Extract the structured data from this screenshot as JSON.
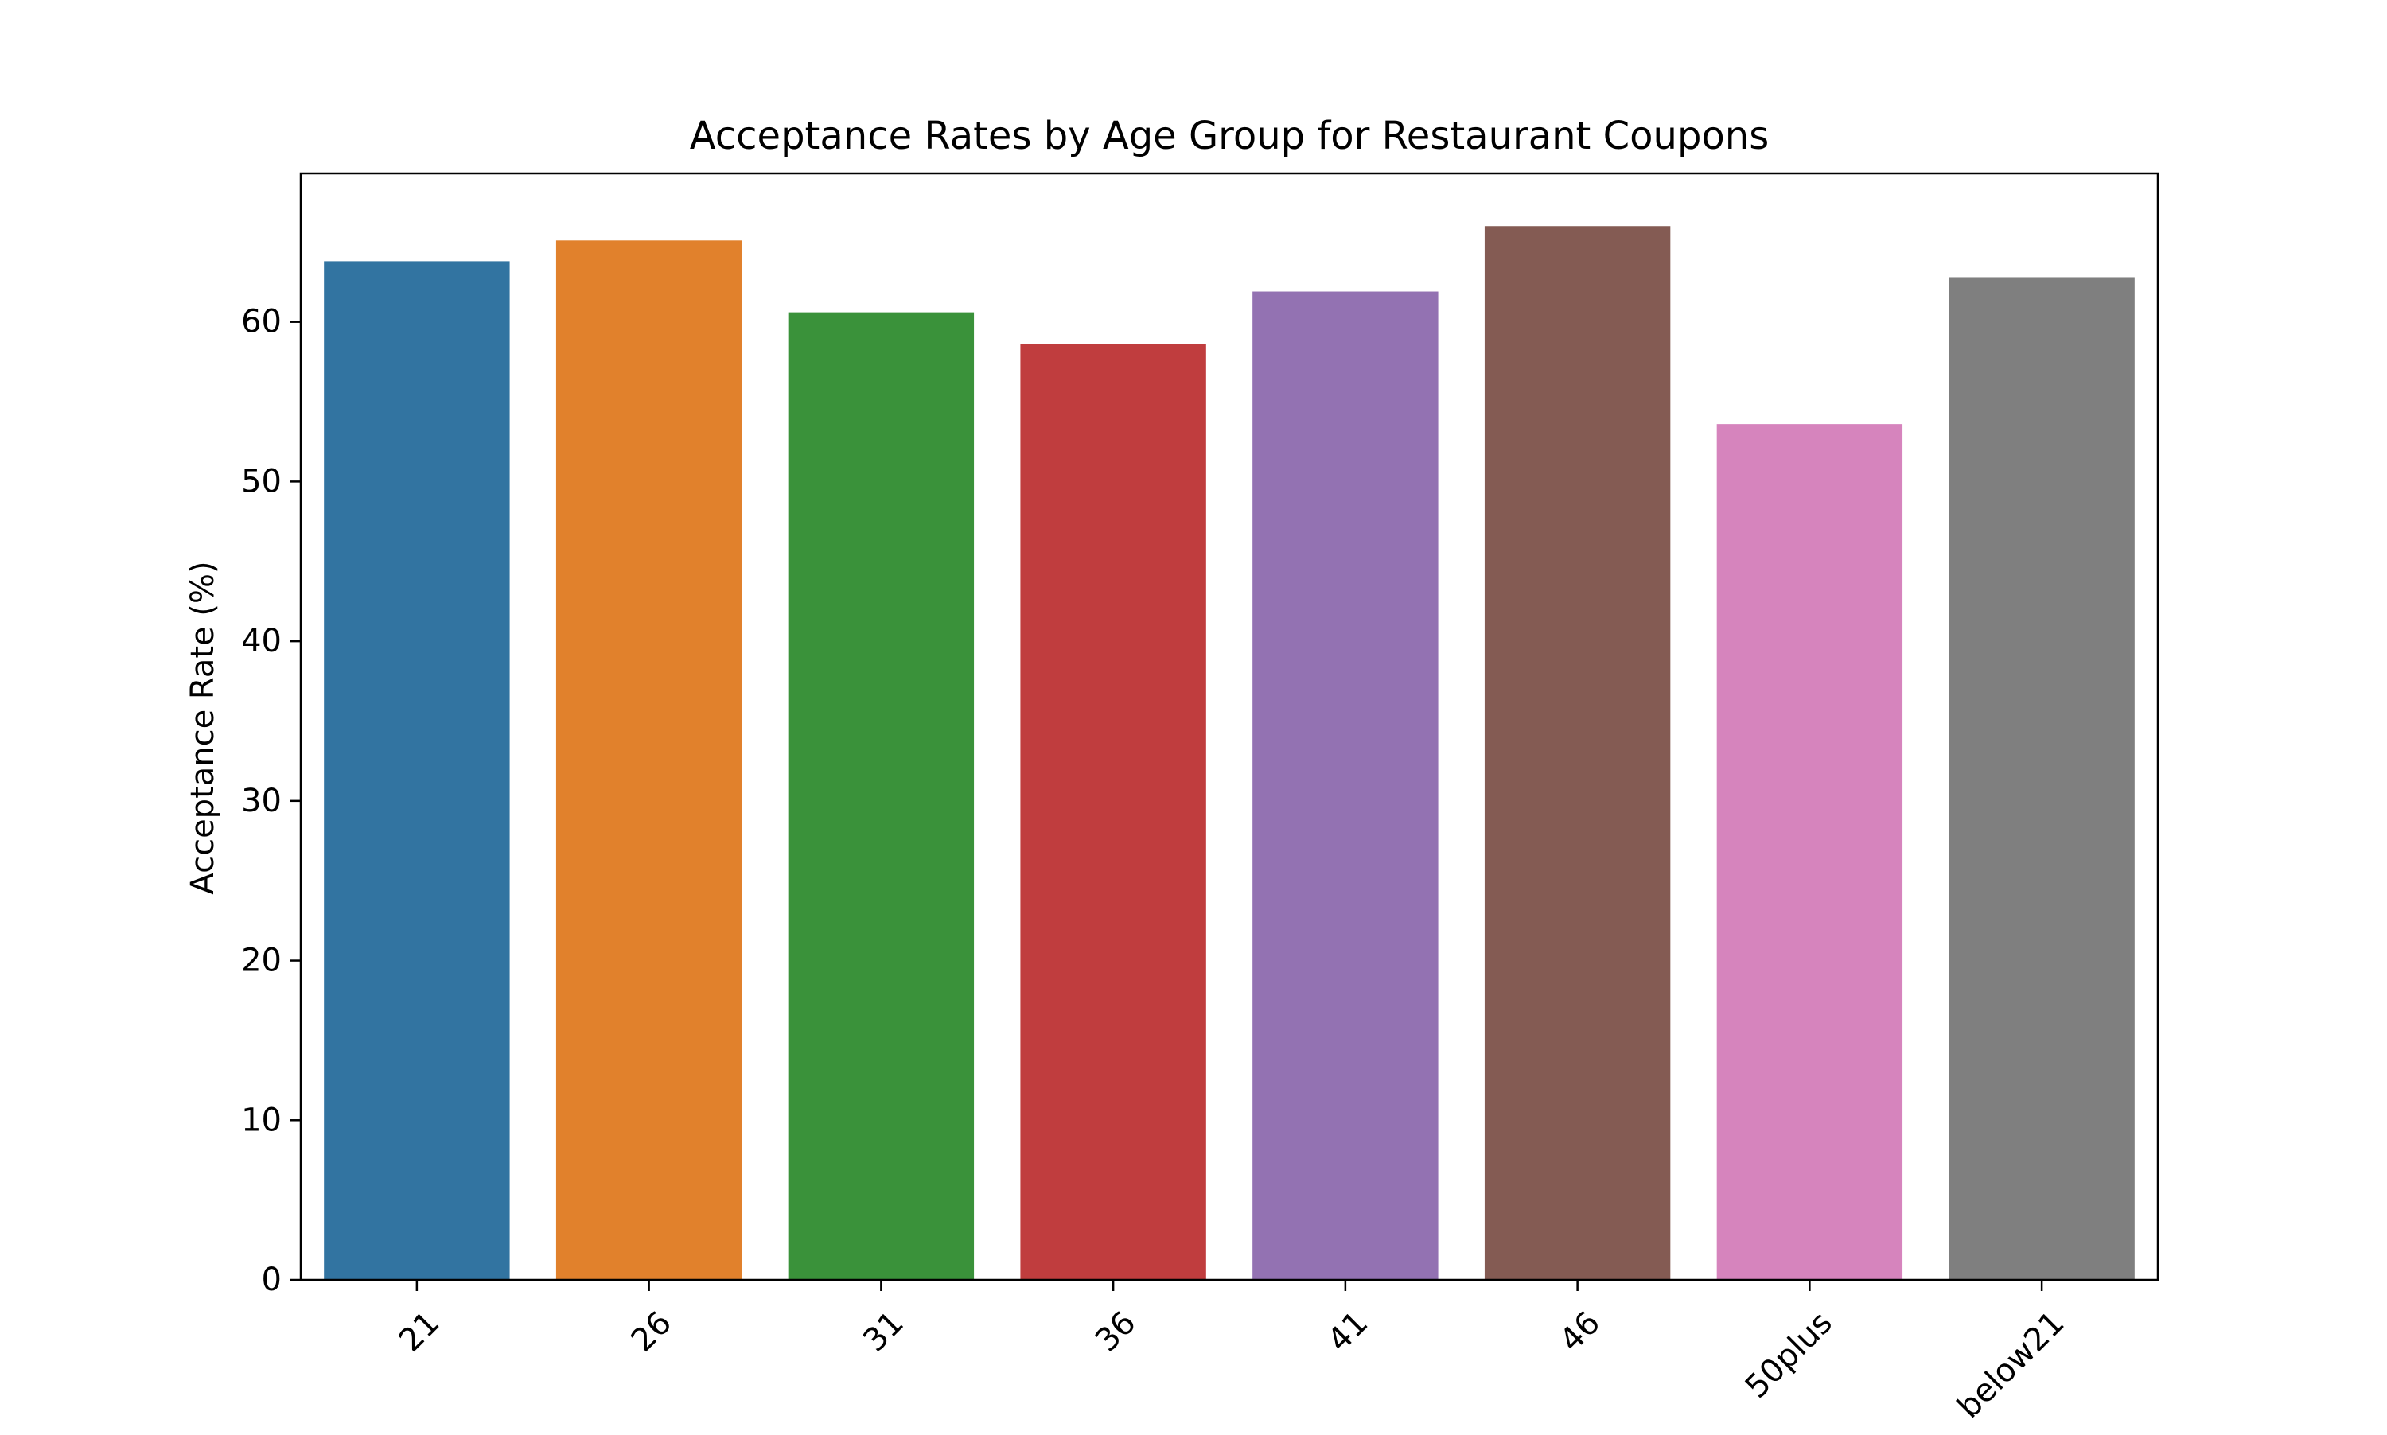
{
  "chart_data": {
    "type": "bar",
    "title": "Acceptance Rates by Age Group for Restaurant Coupons",
    "xlabel": "",
    "ylabel": "Acceptance Rate (%)",
    "categories": [
      "21",
      "26",
      "31",
      "36",
      "41",
      "46",
      "50plus",
      "below21"
    ],
    "values": [
      63.8,
      65.1,
      60.6,
      58.6,
      61.9,
      66.0,
      53.6,
      62.8
    ],
    "colors": [
      "#3274a1",
      "#e1812c",
      "#3a923a",
      "#c03d3e",
      "#9372b2",
      "#845b53",
      "#d684bd",
      "#7f7f7f"
    ],
    "ylim": [
      0,
      69.3
    ],
    "yticks": [
      0,
      10,
      20,
      30,
      40,
      50,
      60
    ],
    "grid": false,
    "legend": "none"
  }
}
